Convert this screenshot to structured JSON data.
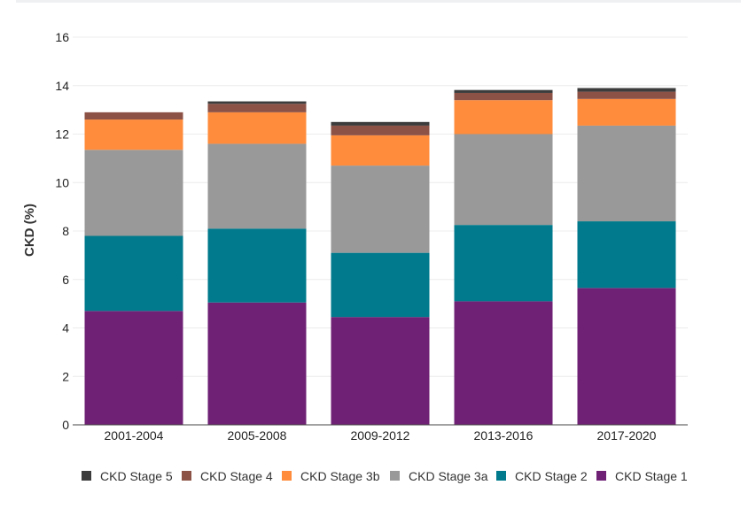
{
  "chart_data": {
    "type": "bar",
    "stacked": true,
    "title": "",
    "xlabel": "",
    "ylabel": "CKD (%)",
    "ylim": [
      0,
      16
    ],
    "yticks": [
      0,
      2,
      4,
      6,
      8,
      10,
      12,
      14,
      16
    ],
    "grid": true,
    "legend_position": "bottom",
    "categories": [
      "2001-2004",
      "2005-2008",
      "2009-2012",
      "2013-2016",
      "2017-2020"
    ],
    "series": [
      {
        "name": "CKD Stage 1",
        "color": "#6f2275",
        "values": [
          4.7,
          5.05,
          4.45,
          5.1,
          5.65
        ]
      },
      {
        "name": "CKD Stage 2",
        "color": "#007a8c",
        "values": [
          3.1,
          3.05,
          2.65,
          3.15,
          2.75
        ]
      },
      {
        "name": "CKD Stage 3a",
        "color": "#999999",
        "values": [
          3.55,
          3.5,
          3.6,
          3.75,
          3.95
        ]
      },
      {
        "name": "CKD Stage 3b",
        "color": "#ff8c3c",
        "values": [
          1.25,
          1.3,
          1.25,
          1.4,
          1.1
        ]
      },
      {
        "name": "CKD Stage 4",
        "color": "#8c5246",
        "values": [
          0.3,
          0.35,
          0.4,
          0.3,
          0.3
        ]
      },
      {
        "name": "CKD Stage 5",
        "color": "#3c3c3c",
        "values": [
          0.0,
          0.1,
          0.15,
          0.12,
          0.15
        ]
      }
    ],
    "legend_order": [
      "CKD Stage 5",
      "CKD Stage 4",
      "CKD Stage 3b",
      "CKD Stage 3a",
      "CKD Stage 2",
      "CKD Stage 1"
    ]
  }
}
